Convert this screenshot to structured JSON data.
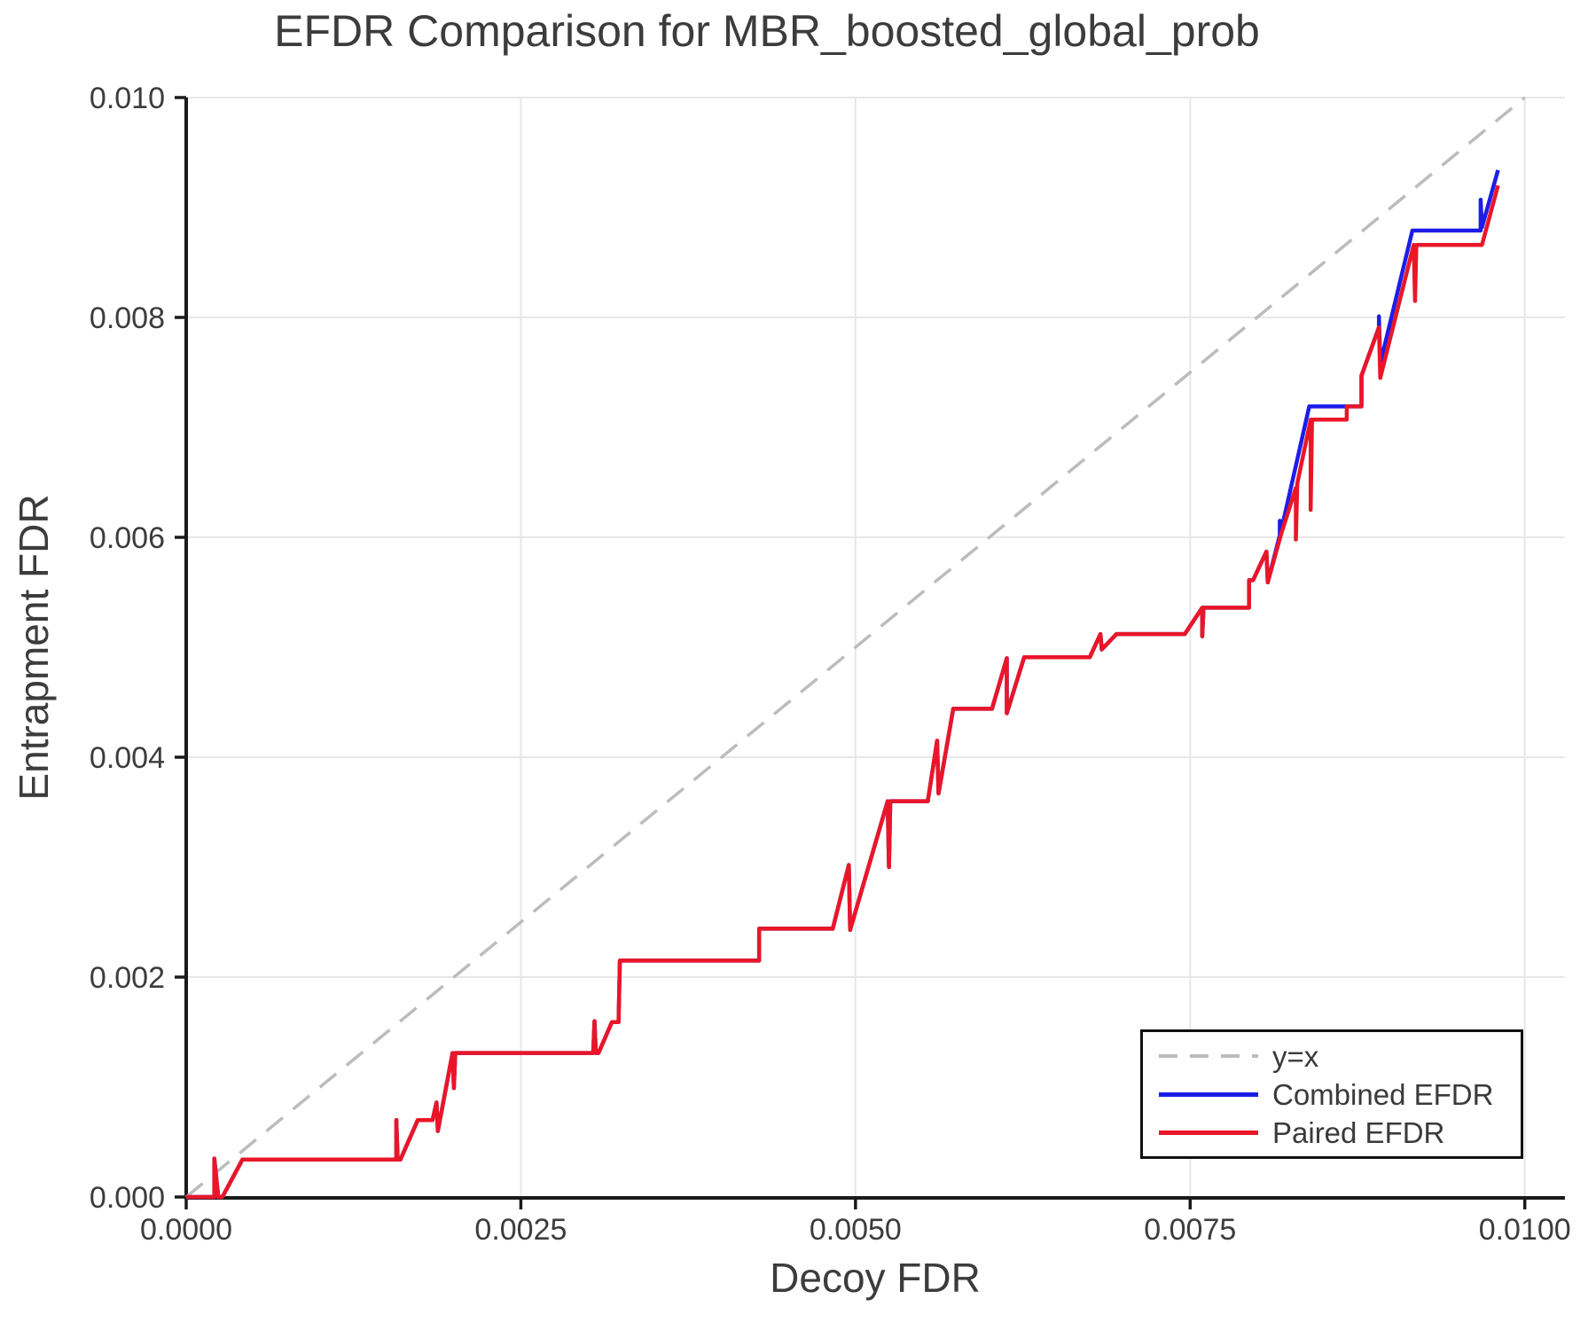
{
  "chart_data": {
    "type": "line",
    "title": "EFDR Comparison for MBR_boosted_global_prob",
    "xlabel": "Decoy FDR",
    "ylabel": "Entrapment FDR",
    "xlim": [
      0.0,
      0.0103
    ],
    "ylim": [
      0.0,
      0.01
    ],
    "grid": true,
    "legend_position": "lower right",
    "x_ticks": [
      0.0,
      0.0025,
      0.005,
      0.0075,
      0.01
    ],
    "x_tick_labels": [
      "0.0000",
      "0.0025",
      "0.0050",
      "0.0075",
      "0.0100"
    ],
    "y_ticks": [
      0.0,
      0.002,
      0.004,
      0.006,
      0.008,
      0.01
    ],
    "y_tick_labels": [
      "0.000",
      "0.002",
      "0.004",
      "0.006",
      "0.008",
      "0.010"
    ],
    "colors": {
      "identity": "#bcbcbc",
      "combined": "#1d1de8",
      "paired": "#ea1628",
      "grid": "#e7e7e7",
      "spine": "#1a1a1a",
      "text": "#3c3c3c"
    },
    "series": [
      {
        "name": "y=x",
        "style": "dashed",
        "color": "#bcbcbc",
        "points": [
          [
            0.0,
            0.0
          ],
          [
            0.01,
            0.01
          ]
        ]
      },
      {
        "name": "Combined EFDR",
        "style": "solid",
        "color": "#1d1de8",
        "points": [
          [
            0.0,
            0.0
          ],
          [
            0.00021,
            0.0
          ],
          [
            0.00021,
            0.00035
          ],
          [
            0.00024,
            0.0
          ],
          [
            0.00027,
            0.0
          ],
          [
            0.00042,
            0.00034
          ],
          [
            0.00157,
            0.00034
          ],
          [
            0.00157,
            0.0007
          ],
          [
            0.00158,
            0.00034
          ],
          [
            0.0016,
            0.00034
          ],
          [
            0.00173,
            0.0007
          ],
          [
            0.00184,
            0.0007
          ],
          [
            0.00187,
            0.00086
          ],
          [
            0.00188,
            0.0006
          ],
          [
            0.00199,
            0.00131
          ],
          [
            0.002,
            0.00099
          ],
          [
            0.00201,
            0.00131
          ],
          [
            0.00304,
            0.00131
          ],
          [
            0.00305,
            0.0016
          ],
          [
            0.00306,
            0.00131
          ],
          [
            0.00308,
            0.00131
          ],
          [
            0.00318,
            0.00159
          ],
          [
            0.00323,
            0.00159
          ],
          [
            0.00324,
            0.00215
          ],
          [
            0.00428,
            0.00215
          ],
          [
            0.00428,
            0.00244
          ],
          [
            0.00483,
            0.00244
          ],
          [
            0.00495,
            0.00302
          ],
          [
            0.00496,
            0.00243
          ],
          [
            0.00524,
            0.0036
          ],
          [
            0.00525,
            0.003
          ],
          [
            0.00526,
            0.0036
          ],
          [
            0.00554,
            0.0036
          ],
          [
            0.00561,
            0.00415
          ],
          [
            0.00562,
            0.00367
          ],
          [
            0.00573,
            0.00444
          ],
          [
            0.00602,
            0.00444
          ],
          [
            0.00613,
            0.0049
          ],
          [
            0.00613,
            0.0044
          ],
          [
            0.00626,
            0.00491
          ],
          [
            0.00675,
            0.00491
          ],
          [
            0.00683,
            0.00512
          ],
          [
            0.00684,
            0.00498
          ],
          [
            0.00695,
            0.00512
          ],
          [
            0.00746,
            0.00512
          ],
          [
            0.00759,
            0.00536
          ],
          [
            0.00759,
            0.0051
          ],
          [
            0.0076,
            0.00536
          ],
          [
            0.00794,
            0.00536
          ],
          [
            0.00794,
            0.00561
          ],
          [
            0.00797,
            0.00561
          ],
          [
            0.00807,
            0.00587
          ],
          [
            0.00808,
            0.00559
          ],
          [
            0.00817,
            0.00602
          ],
          [
            0.00817,
            0.00615
          ],
          [
            0.00818,
            0.00606
          ],
          [
            0.00839,
            0.00719
          ],
          [
            0.00878,
            0.00719
          ],
          [
            0.00878,
            0.00747
          ],
          [
            0.00891,
            0.00791
          ],
          [
            0.00891,
            0.00801
          ],
          [
            0.00892,
            0.00758
          ],
          [
            0.00916,
            0.00879
          ],
          [
            0.00967,
            0.00879
          ],
          [
            0.00967,
            0.00907
          ],
          [
            0.00968,
            0.00882
          ],
          [
            0.0098,
            0.00934
          ]
        ]
      },
      {
        "name": "Paired EFDR",
        "style": "solid",
        "color": "#ea1628",
        "points": [
          [
            0.0,
            0.0
          ],
          [
            0.00021,
            0.0
          ],
          [
            0.00021,
            0.00035
          ],
          [
            0.00024,
            0.0
          ],
          [
            0.00027,
            0.0
          ],
          [
            0.00042,
            0.00034
          ],
          [
            0.00157,
            0.00034
          ],
          [
            0.00157,
            0.0007
          ],
          [
            0.00158,
            0.00034
          ],
          [
            0.0016,
            0.00034
          ],
          [
            0.00173,
            0.0007
          ],
          [
            0.00184,
            0.0007
          ],
          [
            0.00187,
            0.00086
          ],
          [
            0.00188,
            0.0006
          ],
          [
            0.00199,
            0.00131
          ],
          [
            0.002,
            0.00099
          ],
          [
            0.00201,
            0.00131
          ],
          [
            0.00304,
            0.00131
          ],
          [
            0.00305,
            0.0016
          ],
          [
            0.00306,
            0.00131
          ],
          [
            0.00308,
            0.00131
          ],
          [
            0.00318,
            0.00159
          ],
          [
            0.00323,
            0.00159
          ],
          [
            0.00324,
            0.00215
          ],
          [
            0.00428,
            0.00215
          ],
          [
            0.00428,
            0.00244
          ],
          [
            0.00483,
            0.00244
          ],
          [
            0.00495,
            0.00302
          ],
          [
            0.00496,
            0.00243
          ],
          [
            0.00524,
            0.0036
          ],
          [
            0.00525,
            0.003
          ],
          [
            0.00526,
            0.0036
          ],
          [
            0.00554,
            0.0036
          ],
          [
            0.00561,
            0.00415
          ],
          [
            0.00562,
            0.00367
          ],
          [
            0.00573,
            0.00444
          ],
          [
            0.00602,
            0.00444
          ],
          [
            0.00613,
            0.0049
          ],
          [
            0.00613,
            0.0044
          ],
          [
            0.00626,
            0.00491
          ],
          [
            0.00675,
            0.00491
          ],
          [
            0.00683,
            0.00512
          ],
          [
            0.00684,
            0.00498
          ],
          [
            0.00695,
            0.00512
          ],
          [
            0.00746,
            0.00512
          ],
          [
            0.00759,
            0.00536
          ],
          [
            0.00759,
            0.0051
          ],
          [
            0.0076,
            0.00536
          ],
          [
            0.00794,
            0.00536
          ],
          [
            0.00794,
            0.00561
          ],
          [
            0.00797,
            0.00561
          ],
          [
            0.00807,
            0.00587
          ],
          [
            0.00808,
            0.00559
          ],
          [
            0.00818,
            0.00603
          ],
          [
            0.00829,
            0.00645
          ],
          [
            0.00829,
            0.00598
          ],
          [
            0.0083,
            0.00649
          ],
          [
            0.0084,
            0.00707
          ],
          [
            0.0084,
            0.00625
          ],
          [
            0.00841,
            0.00707
          ],
          [
            0.00867,
            0.00707
          ],
          [
            0.00867,
            0.00719
          ],
          [
            0.00878,
            0.00719
          ],
          [
            0.00878,
            0.00747
          ],
          [
            0.00891,
            0.00791
          ],
          [
            0.00892,
            0.00745
          ],
          [
            0.00917,
            0.00866
          ],
          [
            0.00918,
            0.00815
          ],
          [
            0.00919,
            0.00866
          ],
          [
            0.00968,
            0.00866
          ],
          [
            0.0098,
            0.0092
          ]
        ]
      }
    ]
  }
}
